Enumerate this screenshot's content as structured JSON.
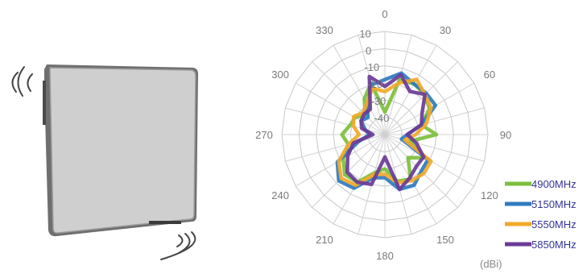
{
  "chart_data": {
    "type": "polar-line",
    "angle_labels": [
      "0",
      "30",
      "60",
      "90",
      "120",
      "150",
      "180",
      "210",
      "240",
      "270",
      "300",
      "330"
    ],
    "radial_labels": [
      "10",
      "0",
      "-10",
      "-20",
      "-30",
      "-40"
    ],
    "radial_range": [
      -50,
      10
    ],
    "unit_label": "(dBi)",
    "grid": true,
    "legend_position": "bottom-right",
    "angles_deg": [
      0,
      15,
      30,
      45,
      60,
      75,
      90,
      105,
      120,
      135,
      150,
      165,
      180,
      195,
      210,
      225,
      240,
      255,
      270,
      285,
      300,
      315,
      330,
      345
    ],
    "series": [
      {
        "name": "4900MHz",
        "color": "#7cbf3c",
        "values": [
          -37,
          -17,
          -16,
          -17,
          -20,
          -28,
          -20,
          -35,
          -23,
          -31,
          -20,
          -22,
          -30,
          -27,
          -18,
          -17,
          -22,
          -28,
          -25,
          -29,
          -30,
          -34,
          -26,
          -19
        ]
      },
      {
        "name": "5150MHz",
        "color": "#2f7bbf",
        "values": [
          -18,
          -13,
          -16,
          -16,
          -16,
          -28,
          -37,
          -40,
          -21,
          -20,
          -16,
          -17,
          -25,
          -24,
          -14,
          -12,
          -18,
          -34,
          -41,
          -38,
          -34,
          -36,
          -30,
          -20
        ]
      },
      {
        "name": "5550MHz",
        "color": "#f0a92b",
        "values": [
          -25,
          -19,
          -13,
          -17,
          -19,
          -25,
          -32,
          -38,
          -19,
          -18,
          -19,
          -21,
          -27,
          -26,
          -16,
          -14,
          -19,
          -28,
          -35,
          -31,
          -29,
          -32,
          -29,
          -22
        ]
      },
      {
        "name": "5850MHz",
        "color": "#6b3b96",
        "values": [
          -22,
          -14,
          -21,
          -17,
          -25,
          -28,
          -37,
          -31,
          -24,
          -24,
          -21,
          -17,
          -37,
          -20,
          -18,
          -19,
          -25,
          -31,
          -43,
          -36,
          -34,
          -33,
          -33,
          -15
        ]
      }
    ]
  },
  "icons": {
    "device": "flat-panel-antenna-icon",
    "signal_top": "wireless-signal-icon",
    "signal_bottom": "wireless-signal-icon"
  }
}
